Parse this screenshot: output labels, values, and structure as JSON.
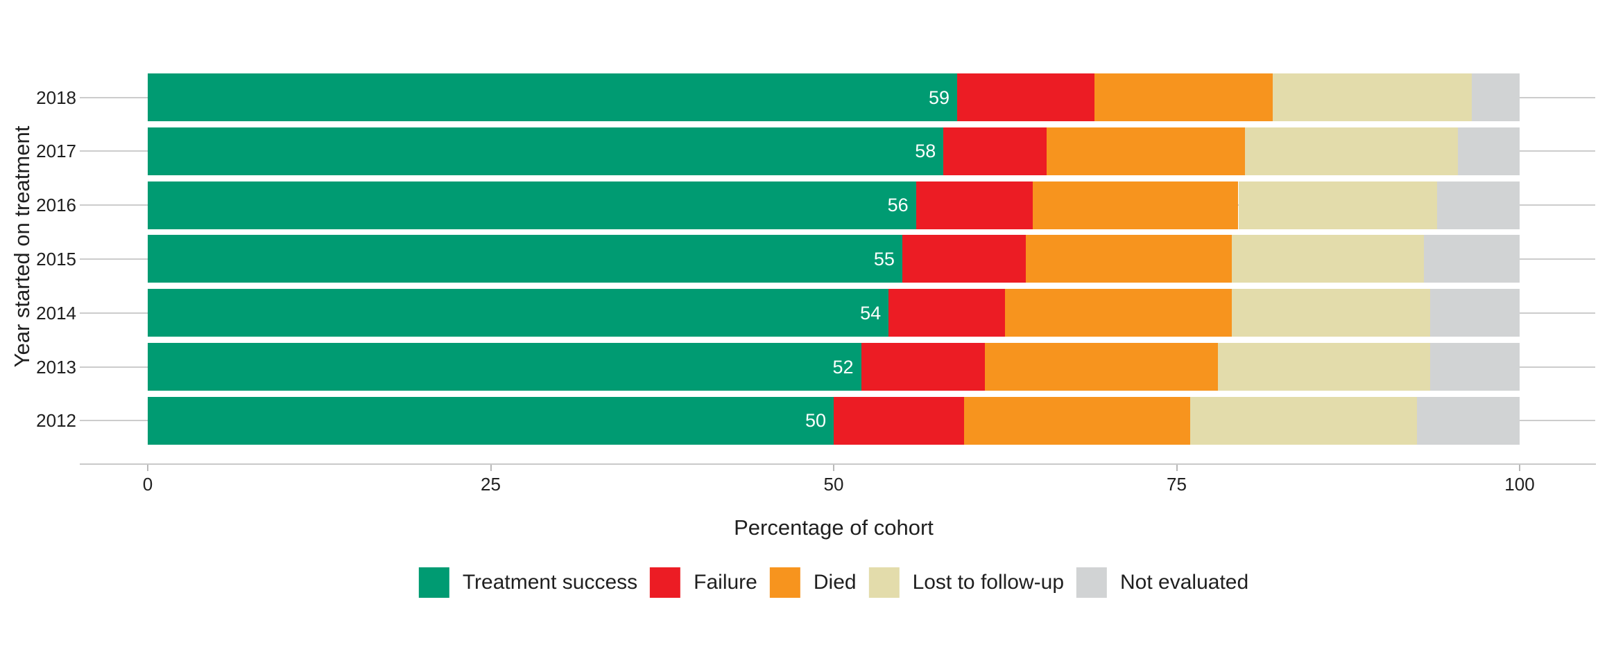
{
  "chart_data": {
    "type": "bar",
    "orientation": "horizontal",
    "stacked": true,
    "xlabel": "Percentage of cohort",
    "ylabel": "Year started on treatment",
    "xlim": [
      0,
      100
    ],
    "x_ticks": [
      0,
      25,
      50,
      75,
      100
    ],
    "categories": [
      "2018",
      "2017",
      "2016",
      "2015",
      "2014",
      "2013",
      "2012"
    ],
    "series": [
      {
        "name": "Treatment success",
        "color": "#009B72",
        "values": [
          59,
          58,
          56,
          55,
          54,
          52,
          50
        ]
      },
      {
        "name": "Failure",
        "color": "#EC1C24",
        "values": [
          10,
          7.5,
          8.5,
          9,
          8.5,
          9,
          9.5
        ]
      },
      {
        "name": "Died",
        "color": "#F7941E",
        "values": [
          13,
          14.5,
          15,
          15,
          16.5,
          17,
          16.5
        ]
      },
      {
        "name": "Lost to follow-up",
        "color": "#E3DCAB",
        "values": [
          14.5,
          15.5,
          14.5,
          14,
          14.5,
          15.5,
          16.5
        ]
      },
      {
        "name": "Not evaluated",
        "color": "#D1D3D4",
        "values": [
          3.5,
          4.5,
          6,
          7,
          6.5,
          6.5,
          7.5
        ]
      }
    ],
    "bar_value_labels": [
      "59",
      "58",
      "56",
      "55",
      "54",
      "52",
      "50"
    ],
    "bar_value_labels_series": "Treatment success",
    "legend_position": "bottom",
    "grid": "horizontal-gridlines-per-category",
    "background_color": "#ffffff",
    "gridline_color": "#cccccc",
    "text_color": "#1f1f1f"
  }
}
